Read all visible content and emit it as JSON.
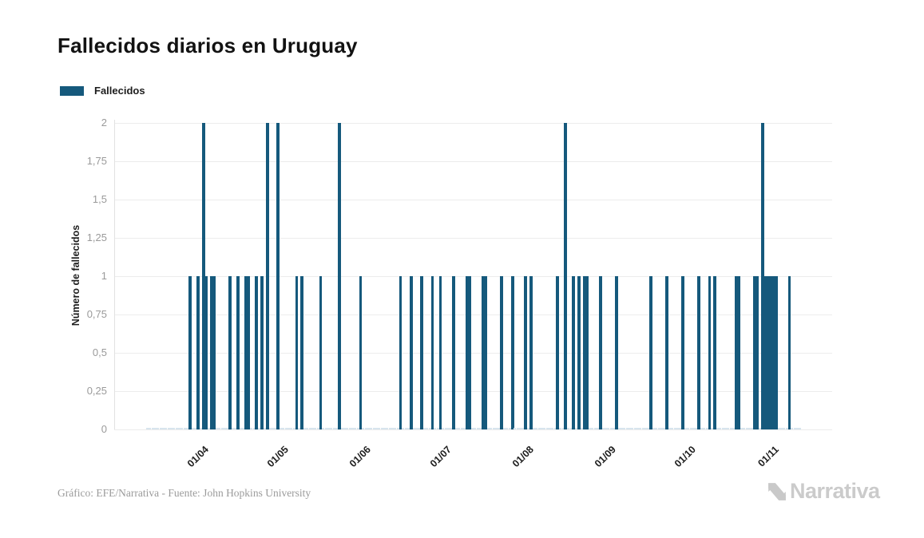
{
  "page": {
    "title": "Fallecidos diarios en Uruguay"
  },
  "legend": {
    "label": "Fallecidos"
  },
  "footer": {
    "credit": "Gráfico: EFE/Narrativa - Fuente: John Hopkins University"
  },
  "logo": {
    "text": "Narrativa",
    "mark_icon": "narrativa-n-mark"
  },
  "chart_data": {
    "type": "bar",
    "title": "Fallecidos diarios en Uruguay",
    "series_name": "Fallecidos",
    "xlabel": "",
    "ylabel": "Número de fallecidos",
    "ylim": [
      0,
      2
    ],
    "grid": true,
    "legend_position": "top-left",
    "colors": {
      "bar": "#15597C",
      "grid": "#ececec",
      "axis": "#e2e2e2",
      "zero_stub": "#d7e4ed",
      "ytick_text": "#9a9a9a",
      "xtick_text": "#1d1d1d"
    },
    "yticks": [
      {
        "value": 0,
        "label": "0"
      },
      {
        "value": 0.25,
        "label": "0,25"
      },
      {
        "value": 0.5,
        "label": "0,5"
      },
      {
        "value": 0.75,
        "label": "0,75"
      },
      {
        "value": 1,
        "label": "1"
      },
      {
        "value": 1.25,
        "label": "1,25"
      },
      {
        "value": 1.5,
        "label": "1,5"
      },
      {
        "value": 1.75,
        "label": "1,75"
      },
      {
        "value": 2,
        "label": "2"
      }
    ],
    "xticks": [
      {
        "date": "2020-04-01",
        "label": "01/04"
      },
      {
        "date": "2020-05-01",
        "label": "01/05"
      },
      {
        "date": "2020-06-01",
        "label": "01/06"
      },
      {
        "date": "2020-07-01",
        "label": "01/07"
      },
      {
        "date": "2020-08-01",
        "label": "01/08"
      },
      {
        "date": "2020-09-01",
        "label": "01/09"
      },
      {
        "date": "2020-10-01",
        "label": "01/10"
      },
      {
        "date": "2020-11-01",
        "label": "01/11"
      }
    ],
    "date_range": {
      "start": "2020-03-13",
      "end": "2020-11-13"
    },
    "values": [
      {
        "date": "2020-03-29",
        "value": 1
      },
      {
        "date": "2020-04-01",
        "value": 1
      },
      {
        "date": "2020-04-03",
        "value": 2
      },
      {
        "date": "2020-04-04",
        "value": 1
      },
      {
        "date": "2020-04-06",
        "value": 1
      },
      {
        "date": "2020-04-07",
        "value": 1
      },
      {
        "date": "2020-04-13",
        "value": 1
      },
      {
        "date": "2020-04-16",
        "value": 1
      },
      {
        "date": "2020-04-19",
        "value": 1
      },
      {
        "date": "2020-04-20",
        "value": 1
      },
      {
        "date": "2020-04-23",
        "value": 1
      },
      {
        "date": "2020-04-25",
        "value": 1
      },
      {
        "date": "2020-04-27",
        "value": 2
      },
      {
        "date": "2020-05-01",
        "value": 2
      },
      {
        "date": "2020-05-08",
        "value": 1
      },
      {
        "date": "2020-05-10",
        "value": 1
      },
      {
        "date": "2020-05-17",
        "value": 1
      },
      {
        "date": "2020-05-24",
        "value": 2
      },
      {
        "date": "2020-06-01",
        "value": 1
      },
      {
        "date": "2020-06-16",
        "value": 1
      },
      {
        "date": "2020-06-20",
        "value": 1
      },
      {
        "date": "2020-06-24",
        "value": 1
      },
      {
        "date": "2020-06-28",
        "value": 1
      },
      {
        "date": "2020-07-01",
        "value": 1
      },
      {
        "date": "2020-07-06",
        "value": 1
      },
      {
        "date": "2020-07-11",
        "value": 1
      },
      {
        "date": "2020-07-12",
        "value": 1
      },
      {
        "date": "2020-07-17",
        "value": 1
      },
      {
        "date": "2020-07-18",
        "value": 1
      },
      {
        "date": "2020-07-24",
        "value": 1
      },
      {
        "date": "2020-07-28",
        "value": 1
      },
      {
        "date": "2020-08-02",
        "value": 1
      },
      {
        "date": "2020-08-04",
        "value": 1
      },
      {
        "date": "2020-08-14",
        "value": 1
      },
      {
        "date": "2020-08-17",
        "value": 2
      },
      {
        "date": "2020-08-20",
        "value": 1
      },
      {
        "date": "2020-08-22",
        "value": 1
      },
      {
        "date": "2020-08-24",
        "value": 1
      },
      {
        "date": "2020-08-25",
        "value": 1
      },
      {
        "date": "2020-08-30",
        "value": 1
      },
      {
        "date": "2020-09-05",
        "value": 1
      },
      {
        "date": "2020-09-18",
        "value": 1
      },
      {
        "date": "2020-09-24",
        "value": 1
      },
      {
        "date": "2020-09-30",
        "value": 1
      },
      {
        "date": "2020-10-06",
        "value": 1
      },
      {
        "date": "2020-10-10",
        "value": 1
      },
      {
        "date": "2020-10-12",
        "value": 1
      },
      {
        "date": "2020-10-20",
        "value": 1
      },
      {
        "date": "2020-10-21",
        "value": 1
      },
      {
        "date": "2020-10-27",
        "value": 1
      },
      {
        "date": "2020-10-28",
        "value": 1
      },
      {
        "date": "2020-10-30",
        "value": 2
      },
      {
        "date": "2020-10-31",
        "value": 1
      },
      {
        "date": "2020-11-01",
        "value": 1
      },
      {
        "date": "2020-11-02",
        "value": 1
      },
      {
        "date": "2020-11-03",
        "value": 1
      },
      {
        "date": "2020-11-04",
        "value": 1
      },
      {
        "date": "2020-11-09",
        "value": 1
      }
    ]
  }
}
